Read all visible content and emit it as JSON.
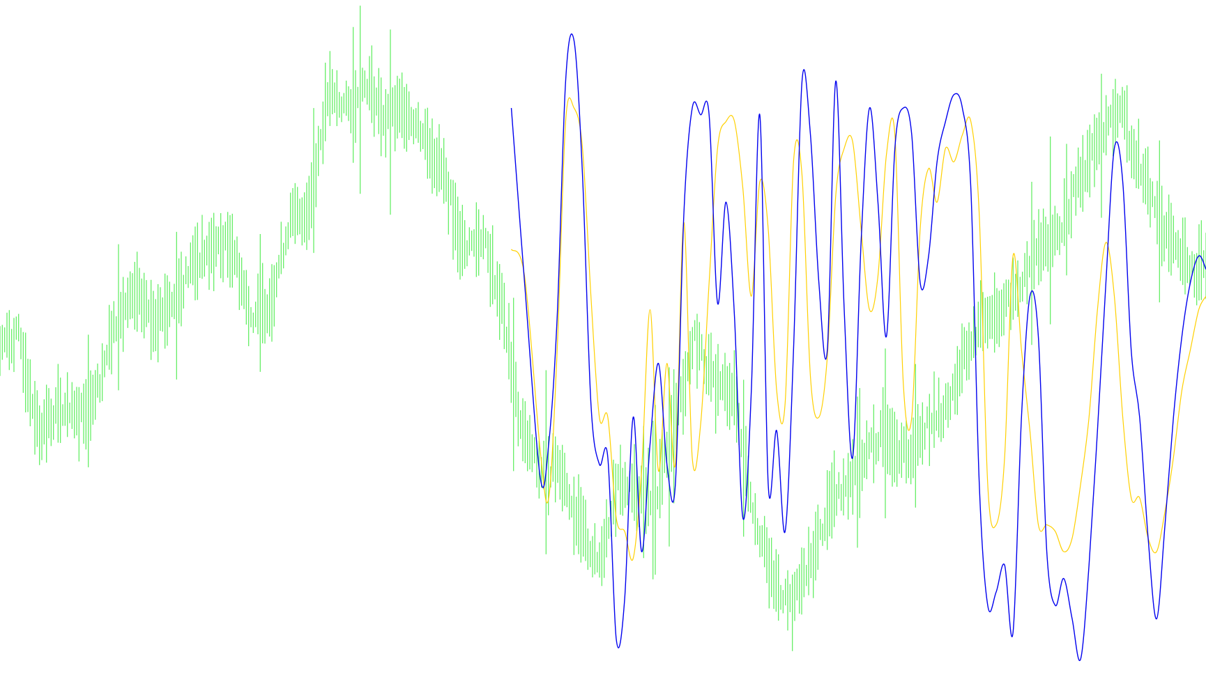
{
  "chart_data": {
    "type": "line",
    "title": "",
    "xlabel": "",
    "ylabel": "",
    "grid": false,
    "legend": "none",
    "x_range": [
      0,
      100
    ],
    "y_range": [
      0,
      100
    ],
    "colors": {
      "background": "#ffffff",
      "price_bars": "#66ee66",
      "fast_line": "#ffd000",
      "slow_line": "#0000ee"
    },
    "series": [
      {
        "type": "bars",
        "color": "#66ee66",
        "x": [
          0,
          1.6,
          3.2,
          4.8,
          6.4,
          8,
          9.6,
          11.2,
          12.8,
          14.4,
          16,
          17.6,
          19.2,
          20.8,
          22.4,
          24,
          25.6,
          27.2,
          28.8,
          30.4,
          32,
          33.6,
          35.2,
          36.8,
          38.4,
          40,
          41.6,
          43.2,
          44.8,
          46.4,
          48,
          49.6,
          51.2,
          52.8,
          54.4,
          56,
          57.6,
          59.2,
          60.8,
          62.4,
          64,
          65.6,
          67.2,
          68.8,
          70.4,
          72,
          73.6,
          75.2,
          76.8,
          78.4,
          80,
          81.6,
          83.2,
          84.8,
          86.4,
          88,
          89.6,
          91.2,
          92.8,
          94.4,
          96,
          97.6,
          99.2,
          100
        ],
        "values": [
          51,
          52,
          38,
          41,
          40,
          44,
          54,
          58,
          55,
          57,
          63,
          65,
          66,
          55,
          57,
          69,
          71,
          88,
          86,
          90,
          84,
          86,
          82,
          76,
          65,
          67,
          57,
          38,
          32,
          33,
          24,
          18,
          30,
          29,
          28,
          39,
          52,
          45,
          44,
          27,
          16,
          12,
          18,
          27,
          31,
          35,
          38,
          34,
          39,
          41,
          49,
          55,
          56,
          60,
          66,
          68,
          76,
          81,
          86,
          78,
          70,
          64,
          62,
          63
        ]
      },
      {
        "type": "line",
        "color": "#ffd000",
        "x": [
          42.4,
          43.5,
          44.8,
          45.5,
          46.2,
          46.9,
          47.6,
          48.3,
          49,
          49.7,
          50.4,
          51.1,
          51.8,
          52.5,
          53.2,
          53.9,
          54.6,
          55.3,
          56,
          56.7,
          57.4,
          58.1,
          58.8,
          59.5,
          60.2,
          60.9,
          61.6,
          62.3,
          63,
          63.7,
          64.4,
          65.1,
          65.8,
          66.5,
          67.2,
          67.9,
          68.6,
          69.3,
          70,
          70.7,
          71.4,
          72.1,
          72.8,
          73.5,
          74.2,
          74.9,
          75.6,
          76.3,
          77,
          77.7,
          78.4,
          79.1,
          79.8,
          80.5,
          81.2,
          81.9,
          82.6,
          83.3,
          84,
          84.7,
          85.4,
          86.1,
          86.8,
          87.5,
          88.2,
          88.9,
          89.6,
          90.3,
          91,
          91.7,
          92.4,
          93.1,
          93.8,
          94.5,
          95.2,
          95.9,
          96.6,
          97.3,
          98,
          98.7,
          99.4,
          100
        ],
        "values": [
          65,
          61,
          35,
          28,
          50,
          84,
          86,
          80,
          58,
          40,
          40,
          25,
          23,
          19,
          32,
          56,
          32,
          48,
          33,
          69,
          34,
          39,
          60,
          80,
          84,
          84,
          74,
          58,
          75,
          68,
          44,
          42,
          78,
          76,
          46,
          40,
          49,
          73,
          80,
          81,
          68,
          56,
          61,
          79,
          82,
          45,
          40,
          68,
          77,
          72,
          80,
          78,
          82,
          84,
          70,
          30,
          24,
          34,
          64,
          50,
          38,
          24,
          24,
          23,
          20,
          22,
          30,
          40,
          56,
          66,
          58,
          40,
          28,
          28,
          22,
          20,
          26,
          34,
          44,
          50,
          56,
          58
        ]
      },
      {
        "type": "line",
        "color": "#0000ee",
        "x": [
          42.4,
          43.5,
          44.8,
          45.5,
          46.2,
          46.9,
          47.6,
          48.3,
          49,
          49.7,
          50.4,
          51.1,
          51.8,
          52.5,
          53.2,
          53.9,
          54.6,
          55.3,
          56,
          56.7,
          57.4,
          58.1,
          58.8,
          59.5,
          60.2,
          60.9,
          61.6,
          62.3,
          63,
          63.7,
          64.4,
          65.1,
          65.8,
          66.5,
          67.2,
          67.9,
          68.6,
          69.3,
          70,
          70.7,
          71.4,
          72.1,
          72.8,
          73.5,
          74.2,
          74.9,
          75.6,
          76.3,
          77,
          77.7,
          78.4,
          79.1,
          79.8,
          80.5,
          81.2,
          81.9,
          82.6,
          83.3,
          84,
          84.7,
          85.4,
          86.1,
          86.8,
          87.5,
          88.2,
          88.9,
          89.6,
          90.3,
          91,
          91.7,
          92.4,
          93.1,
          93.8,
          94.5,
          95.2,
          95.9,
          96.6,
          97.3,
          98,
          98.7,
          99.4,
          100
        ],
        "values": [
          86,
          60,
          31,
          36,
          55,
          90,
          96,
          76,
          42,
          33,
          34,
          7,
          13,
          40,
          20,
          36,
          48,
          33,
          30,
          70,
          86,
          85,
          85,
          57,
          72,
          55,
          25,
          44,
          85,
          30,
          38,
          23,
          50,
          90,
          82,
          60,
          50,
          90,
          56,
          34,
          66,
          86,
          72,
          52,
          80,
          86,
          82,
          60,
          64,
          78,
          84,
          88,
          86,
          74,
          30,
          12,
          14,
          18,
          8,
          40,
          58,
          52,
          20,
          12,
          16,
          10,
          4,
          18,
          38,
          60,
          80,
          75,
          50,
          40,
          22,
          10,
          24,
          40,
          52,
          60,
          64,
          62
        ]
      }
    ]
  }
}
